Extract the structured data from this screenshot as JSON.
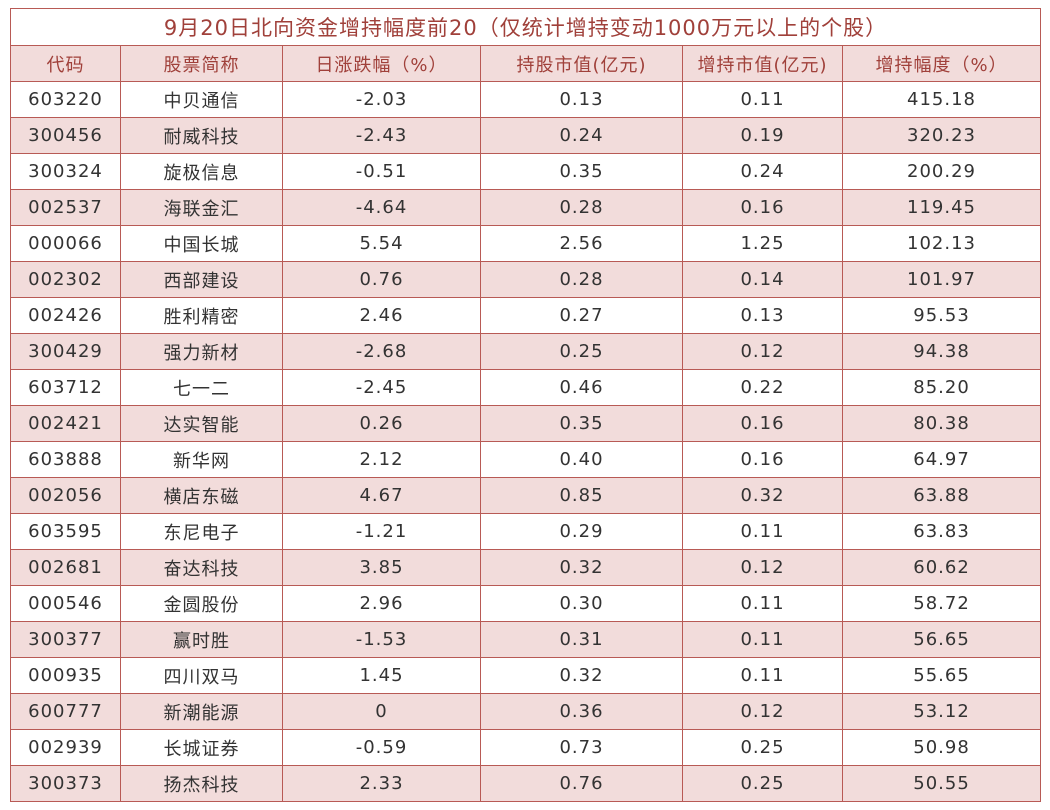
{
  "table": {
    "title": "9月20日北向资金增持幅度前20（仅统计增持变动1000万元以上的个股）",
    "columns": [
      "代码",
      "股票简称",
      "日涨跌幅（%）",
      "持股市值(亿元)",
      "增持市值(亿元)",
      "增持幅度（%）"
    ],
    "rows": [
      [
        "603220",
        "中贝通信",
        "-2.03",
        "0.13",
        "0.11",
        "415.18"
      ],
      [
        "300456",
        "耐威科技",
        "-2.43",
        "0.24",
        "0.19",
        "320.23"
      ],
      [
        "300324",
        "旋极信息",
        "-0.51",
        "0.35",
        "0.24",
        "200.29"
      ],
      [
        "002537",
        "海联金汇",
        "-4.64",
        "0.28",
        "0.16",
        "119.45"
      ],
      [
        "000066",
        "中国长城",
        "5.54",
        "2.56",
        "1.25",
        "102.13"
      ],
      [
        "002302",
        "西部建设",
        "0.76",
        "0.28",
        "0.14",
        "101.97"
      ],
      [
        "002426",
        "胜利精密",
        "2.46",
        "0.27",
        "0.13",
        "95.53"
      ],
      [
        "300429",
        "强力新材",
        "-2.68",
        "0.25",
        "0.12",
        "94.38"
      ],
      [
        "603712",
        "七一二",
        "-2.45",
        "0.46",
        "0.22",
        "85.20"
      ],
      [
        "002421",
        "达实智能",
        "0.26",
        "0.35",
        "0.16",
        "80.38"
      ],
      [
        "603888",
        "新华网",
        "2.12",
        "0.40",
        "0.16",
        "64.97"
      ],
      [
        "002056",
        "横店东磁",
        "4.67",
        "0.85",
        "0.32",
        "63.88"
      ],
      [
        "603595",
        "东尼电子",
        "-1.21",
        "0.29",
        "0.11",
        "63.83"
      ],
      [
        "002681",
        "奋达科技",
        "3.85",
        "0.32",
        "0.12",
        "60.62"
      ],
      [
        "000546",
        "金圆股份",
        "2.96",
        "0.30",
        "0.11",
        "58.72"
      ],
      [
        "300377",
        "赢时胜",
        "-1.53",
        "0.31",
        "0.11",
        "56.65"
      ],
      [
        "000935",
        "四川双马",
        "1.45",
        "0.32",
        "0.11",
        "55.65"
      ],
      [
        "600777",
        "新潮能源",
        "0",
        "0.36",
        "0.12",
        "53.12"
      ],
      [
        "002939",
        "长城证券",
        "-0.59",
        "0.73",
        "0.25",
        "50.98"
      ],
      [
        "300373",
        "扬杰科技",
        "2.33",
        "0.76",
        "0.25",
        "50.55"
      ]
    ]
  }
}
